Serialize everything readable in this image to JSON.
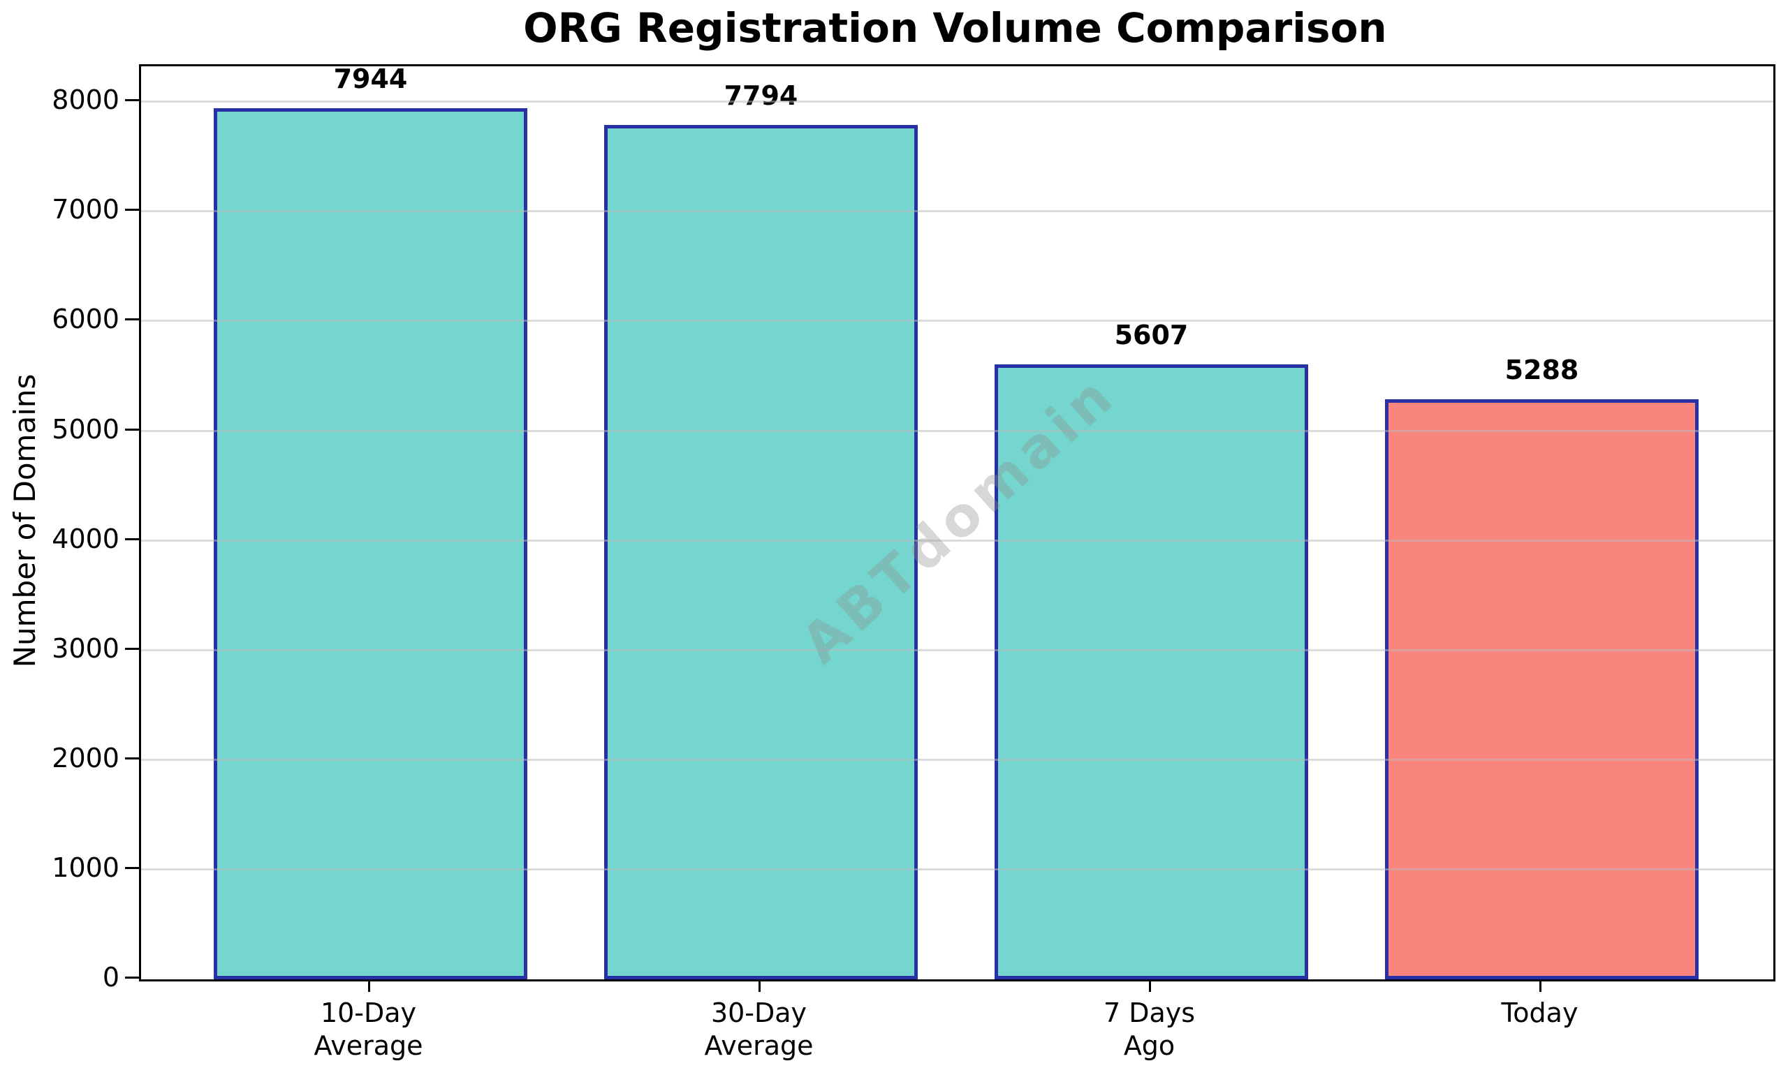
{
  "chart_data": {
    "type": "bar",
    "title": "ORG Registration Volume Comparison",
    "ylabel": "Number of Domains",
    "xlabel": "",
    "categories": [
      "10-Day\nAverage",
      "30-Day\nAverage",
      "7 Days\nAgo",
      "Today"
    ],
    "values": [
      7944,
      7794,
      5607,
      5288
    ],
    "bar_labels": [
      "7944",
      "7794",
      "5607",
      "5288"
    ],
    "bar_colors": [
      "#74D6CE",
      "#74D6CE",
      "#74D6CE",
      "#FA857F"
    ],
    "bar_edge_color": "#2830A5",
    "ylim": [
      0,
      8326
    ],
    "yticks": [
      0,
      1000,
      2000,
      3000,
      4000,
      5000,
      6000,
      7000,
      8000
    ],
    "grid": true,
    "legend_position": "none",
    "watermark": {
      "text": "ABTdomain",
      "color": "#909090",
      "opacity": 0.35,
      "rotation_deg": -42
    }
  }
}
